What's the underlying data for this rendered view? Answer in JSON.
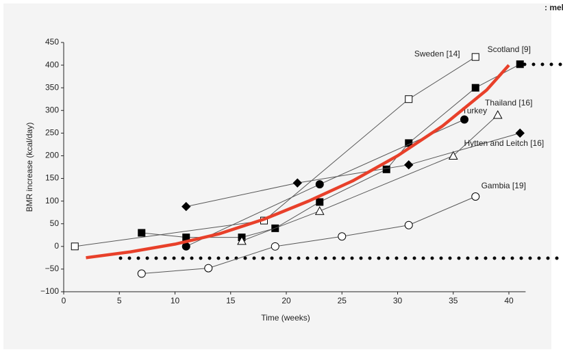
{
  "chart_data": {
    "type": "line",
    "annotation": ": mel",
    "xlabel": "Time (weeks)",
    "ylabel": "BMR increase (kcal/day)",
    "xlim": [
      0,
      41.5
    ],
    "ylim": [
      -100,
      450
    ],
    "xticks": [
      0,
      5,
      10,
      15,
      20,
      25,
      30,
      35,
      40
    ],
    "yticks": [
      {
        "value": -100,
        "label": "−100"
      },
      {
        "value": -50,
        "label": "−50"
      },
      0,
      50,
      100,
      150,
      200,
      250,
      300,
      350,
      400,
      450
    ],
    "series": [
      {
        "name": "Sweden [14]",
        "color": "#555555",
        "marker": "square",
        "filled": false,
        "x": [
          1,
          18,
          31,
          37
        ],
        "values": [
          0,
          57,
          325,
          418
        ]
      },
      {
        "name": "Scotland [9]",
        "color": "#555555",
        "marker": "square",
        "filled": true,
        "x": [
          7,
          11,
          16,
          19,
          23,
          29,
          31,
          37,
          41
        ],
        "values": [
          30,
          20,
          20,
          40,
          98,
          170,
          228,
          350,
          402
        ]
      },
      {
        "name": "Thailand [16]",
        "color": "#555555",
        "marker": "triangle",
        "filled": false,
        "x": [
          16,
          23,
          35,
          39
        ],
        "values": [
          12,
          78,
          200,
          290
        ]
      },
      {
        "name": "Turkey",
        "color": "#555555",
        "marker": "circle",
        "filled": true,
        "x": [
          11,
          23,
          36
        ],
        "values": [
          0,
          137,
          280
        ]
      },
      {
        "name": "Hytten and Leitch [16]",
        "color": "#555555",
        "marker": "diamond",
        "filled": true,
        "x": [
          11,
          21,
          31,
          41
        ],
        "values": [
          88,
          140,
          180,
          250
        ]
      },
      {
        "name": "Gambia [19]",
        "color": "#555555",
        "marker": "circle",
        "filled": false,
        "x": [
          7,
          13,
          19,
          25,
          31,
          37
        ],
        "values": [
          -60,
          -48,
          0,
          22,
          47,
          110
        ]
      },
      {
        "color": "#e8402a",
        "marker": "none",
        "x": [
          2,
          6,
          10,
          14,
          18,
          22,
          26,
          30,
          34,
          38,
          40
        ],
        "values": [
          -25,
          -12,
          5,
          28,
          60,
          100,
          145,
          200,
          265,
          345,
          400
        ]
      }
    ]
  }
}
